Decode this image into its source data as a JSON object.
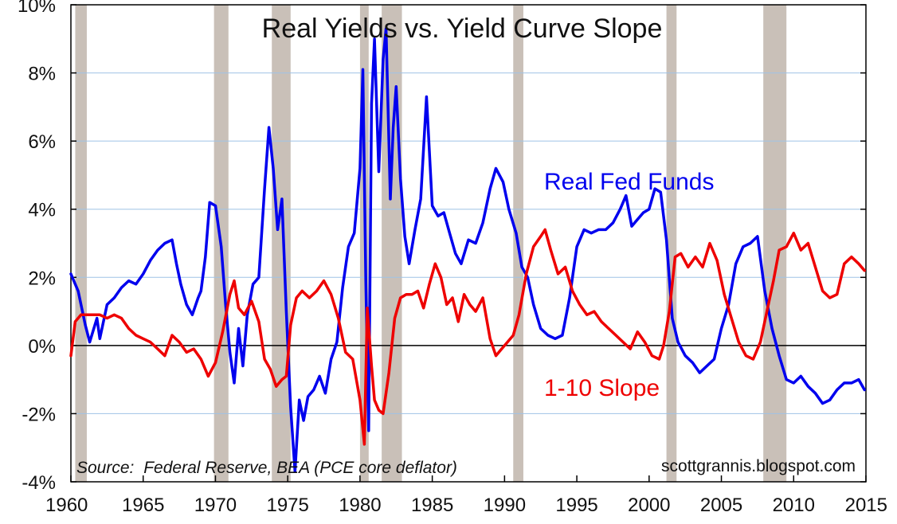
{
  "chart_data": {
    "type": "line",
    "title": "Real Yields vs. Yield Curve Slope",
    "xlabel": "",
    "ylabel": "",
    "xlim": [
      1960,
      2015
    ],
    "ylim": [
      -4,
      10
    ],
    "x_ticks": [
      "1960",
      "1965",
      "1970",
      "1975",
      "1980",
      "1985",
      "1990",
      "1995",
      "2000",
      "2005",
      "2010",
      "2015"
    ],
    "y_ticks": [
      "-4%",
      "-2%",
      "0%",
      "2%",
      "4%",
      "6%",
      "8%",
      "10%"
    ],
    "grid": true,
    "recessions": [
      [
        1960.3,
        1961.1
      ],
      [
        1969.9,
        1970.9
      ],
      [
        1973.9,
        1975.2
      ],
      [
        1980.0,
        1980.6
      ],
      [
        1981.5,
        1982.9
      ],
      [
        1990.6,
        1991.3
      ],
      [
        2001.2,
        2001.9
      ],
      [
        2007.9,
        2009.5
      ]
    ],
    "series": [
      {
        "name": "Real Fed Funds",
        "color": "#0000ee",
        "points": [
          [
            1960.0,
            2.1
          ],
          [
            1960.5,
            1.6
          ],
          [
            1961.0,
            0.6
          ],
          [
            1961.3,
            0.1
          ],
          [
            1961.8,
            0.8
          ],
          [
            1962.0,
            0.2
          ],
          [
            1962.5,
            1.2
          ],
          [
            1963.0,
            1.4
          ],
          [
            1963.5,
            1.7
          ],
          [
            1964.0,
            1.9
          ],
          [
            1964.5,
            1.8
          ],
          [
            1965.0,
            2.1
          ],
          [
            1965.5,
            2.5
          ],
          [
            1966.0,
            2.8
          ],
          [
            1966.5,
            3.0
          ],
          [
            1967.0,
            3.1
          ],
          [
            1967.3,
            2.4
          ],
          [
            1967.6,
            1.8
          ],
          [
            1968.0,
            1.2
          ],
          [
            1968.4,
            0.9
          ],
          [
            1968.8,
            1.4
          ],
          [
            1969.0,
            1.6
          ],
          [
            1969.3,
            2.6
          ],
          [
            1969.6,
            4.2
          ],
          [
            1970.0,
            4.1
          ],
          [
            1970.4,
            2.9
          ],
          [
            1970.7,
            1.2
          ],
          [
            1971.0,
            -0.2
          ],
          [
            1971.3,
            -1.1
          ],
          [
            1971.6,
            0.5
          ],
          [
            1971.9,
            -0.6
          ],
          [
            1972.2,
            0.9
          ],
          [
            1972.6,
            1.8
          ],
          [
            1973.0,
            2.0
          ],
          [
            1973.4,
            4.6
          ],
          [
            1973.7,
            6.4
          ],
          [
            1974.0,
            5.2
          ],
          [
            1974.3,
            3.4
          ],
          [
            1974.6,
            4.3
          ],
          [
            1974.9,
            1.0
          ],
          [
            1975.2,
            -1.8
          ],
          [
            1975.5,
            -3.7
          ],
          [
            1975.8,
            -1.6
          ],
          [
            1976.1,
            -2.2
          ],
          [
            1976.4,
            -1.5
          ],
          [
            1976.8,
            -1.3
          ],
          [
            1977.2,
            -0.9
          ],
          [
            1977.6,
            -1.4
          ],
          [
            1978.0,
            -0.4
          ],
          [
            1978.4,
            0.1
          ],
          [
            1978.8,
            1.7
          ],
          [
            1979.2,
            2.9
          ],
          [
            1979.6,
            3.3
          ],
          [
            1980.0,
            5.2
          ],
          [
            1980.2,
            8.1
          ],
          [
            1980.4,
            1.9
          ],
          [
            1980.6,
            -2.5
          ],
          [
            1980.8,
            7.1
          ],
          [
            1981.0,
            9.0
          ],
          [
            1981.3,
            5.1
          ],
          [
            1981.6,
            8.4
          ],
          [
            1981.8,
            9.3
          ],
          [
            1982.1,
            4.3
          ],
          [
            1982.3,
            6.4
          ],
          [
            1982.5,
            7.6
          ],
          [
            1982.8,
            4.9
          ],
          [
            1983.1,
            3.2
          ],
          [
            1983.4,
            2.4
          ],
          [
            1983.8,
            3.4
          ],
          [
            1984.2,
            4.3
          ],
          [
            1984.6,
            7.3
          ],
          [
            1985.0,
            4.1
          ],
          [
            1985.4,
            3.8
          ],
          [
            1985.8,
            3.9
          ],
          [
            1986.2,
            3.3
          ],
          [
            1986.6,
            2.7
          ],
          [
            1987.0,
            2.4
          ],
          [
            1987.5,
            3.1
          ],
          [
            1988.0,
            3.0
          ],
          [
            1988.5,
            3.6
          ],
          [
            1989.0,
            4.6
          ],
          [
            1989.4,
            5.2
          ],
          [
            1989.9,
            4.8
          ],
          [
            1990.3,
            4.0
          ],
          [
            1990.8,
            3.3
          ],
          [
            1991.2,
            2.3
          ],
          [
            1991.6,
            2.0
          ],
          [
            1992.0,
            1.2
          ],
          [
            1992.5,
            0.5
          ],
          [
            1993.0,
            0.3
          ],
          [
            1993.5,
            0.2
          ],
          [
            1994.0,
            0.3
          ],
          [
            1994.5,
            1.4
          ],
          [
            1995.0,
            2.9
          ],
          [
            1995.5,
            3.4
          ],
          [
            1996.0,
            3.3
          ],
          [
            1996.5,
            3.4
          ],
          [
            1997.0,
            3.4
          ],
          [
            1997.5,
            3.6
          ],
          [
            1998.0,
            4.0
          ],
          [
            1998.4,
            4.4
          ],
          [
            1998.8,
            3.5
          ],
          [
            1999.2,
            3.7
          ],
          [
            1999.6,
            3.9
          ],
          [
            2000.0,
            4.0
          ],
          [
            2000.4,
            4.6
          ],
          [
            2000.8,
            4.5
          ],
          [
            2001.2,
            3.1
          ],
          [
            2001.6,
            0.8
          ],
          [
            2002.0,
            0.1
          ],
          [
            2002.5,
            -0.3
          ],
          [
            2003.0,
            -0.5
          ],
          [
            2003.5,
            -0.8
          ],
          [
            2004.0,
            -0.6
          ],
          [
            2004.5,
            -0.4
          ],
          [
            2005.0,
            0.5
          ],
          [
            2005.5,
            1.2
          ],
          [
            2006.0,
            2.4
          ],
          [
            2006.5,
            2.9
          ],
          [
            2007.0,
            3.0
          ],
          [
            2007.5,
            3.2
          ],
          [
            2008.0,
            1.6
          ],
          [
            2008.5,
            0.5
          ],
          [
            2009.0,
            -0.3
          ],
          [
            2009.5,
            -1.0
          ],
          [
            2010.0,
            -1.1
          ],
          [
            2010.5,
            -0.9
          ],
          [
            2011.0,
            -1.2
          ],
          [
            2011.5,
            -1.4
          ],
          [
            2012.0,
            -1.7
          ],
          [
            2012.5,
            -1.6
          ],
          [
            2013.0,
            -1.3
          ],
          [
            2013.5,
            -1.1
          ],
          [
            2014.0,
            -1.1
          ],
          [
            2014.5,
            -1.0
          ],
          [
            2014.9,
            -1.3
          ]
        ]
      },
      {
        "name": "1-10 Slope",
        "color": "#ee0000",
        "points": [
          [
            1960.0,
            -0.3
          ],
          [
            1960.3,
            0.7
          ],
          [
            1960.7,
            0.9
          ],
          [
            1961.0,
            0.9
          ],
          [
            1961.5,
            0.9
          ],
          [
            1962.0,
            0.9
          ],
          [
            1962.5,
            0.8
          ],
          [
            1963.0,
            0.9
          ],
          [
            1963.5,
            0.8
          ],
          [
            1964.0,
            0.5
          ],
          [
            1964.5,
            0.3
          ],
          [
            1965.0,
            0.2
          ],
          [
            1965.5,
            0.1
          ],
          [
            1966.0,
            -0.1
          ],
          [
            1966.5,
            -0.3
          ],
          [
            1967.0,
            0.3
          ],
          [
            1967.5,
            0.1
          ],
          [
            1968.0,
            -0.2
          ],
          [
            1968.5,
            -0.1
          ],
          [
            1969.0,
            -0.4
          ],
          [
            1969.5,
            -0.9
          ],
          [
            1970.0,
            -0.5
          ],
          [
            1970.5,
            0.4
          ],
          [
            1971.0,
            1.5
          ],
          [
            1971.3,
            1.9
          ],
          [
            1971.6,
            1.1
          ],
          [
            1972.0,
            0.9
          ],
          [
            1972.5,
            1.3
          ],
          [
            1973.0,
            0.7
          ],
          [
            1973.4,
            -0.4
          ],
          [
            1973.8,
            -0.7
          ],
          [
            1974.2,
            -1.2
          ],
          [
            1974.6,
            -1.0
          ],
          [
            1974.9,
            -0.9
          ],
          [
            1975.2,
            0.6
          ],
          [
            1975.6,
            1.4
          ],
          [
            1976.0,
            1.6
          ],
          [
            1976.5,
            1.4
          ],
          [
            1977.0,
            1.6
          ],
          [
            1977.5,
            1.9
          ],
          [
            1978.0,
            1.5
          ],
          [
            1978.5,
            0.8
          ],
          [
            1979.0,
            -0.2
          ],
          [
            1979.5,
            -0.4
          ],
          [
            1980.0,
            -1.6
          ],
          [
            1980.3,
            -2.9
          ],
          [
            1980.5,
            1.1
          ],
          [
            1980.8,
            -0.6
          ],
          [
            1981.0,
            -1.6
          ],
          [
            1981.3,
            -1.9
          ],
          [
            1981.6,
            -2.0
          ],
          [
            1982.0,
            -0.8
          ],
          [
            1982.4,
            0.8
          ],
          [
            1982.8,
            1.4
          ],
          [
            1983.2,
            1.5
          ],
          [
            1983.6,
            1.5
          ],
          [
            1984.0,
            1.6
          ],
          [
            1984.4,
            1.1
          ],
          [
            1984.8,
            1.8
          ],
          [
            1985.2,
            2.4
          ],
          [
            1985.6,
            2.0
          ],
          [
            1986.0,
            1.2
          ],
          [
            1986.4,
            1.4
          ],
          [
            1986.8,
            0.7
          ],
          [
            1987.2,
            1.5
          ],
          [
            1987.6,
            1.2
          ],
          [
            1988.0,
            1.0
          ],
          [
            1988.5,
            1.4
          ],
          [
            1989.0,
            0.2
          ],
          [
            1989.4,
            -0.3
          ],
          [
            1989.8,
            -0.1
          ],
          [
            1990.2,
            0.1
          ],
          [
            1990.6,
            0.3
          ],
          [
            1991.0,
            0.9
          ],
          [
            1991.5,
            2.1
          ],
          [
            1992.0,
            2.9
          ],
          [
            1992.5,
            3.2
          ],
          [
            1992.8,
            3.4
          ],
          [
            1993.2,
            2.8
          ],
          [
            1993.7,
            2.1
          ],
          [
            1994.2,
            2.3
          ],
          [
            1994.7,
            1.6
          ],
          [
            1995.2,
            1.2
          ],
          [
            1995.7,
            0.9
          ],
          [
            1996.2,
            1.0
          ],
          [
            1996.7,
            0.7
          ],
          [
            1997.2,
            0.5
          ],
          [
            1997.7,
            0.3
          ],
          [
            1998.2,
            0.1
          ],
          [
            1998.7,
            -0.1
          ],
          [
            1999.2,
            0.4
          ],
          [
            1999.7,
            0.1
          ],
          [
            2000.2,
            -0.3
          ],
          [
            2000.7,
            -0.4
          ],
          [
            2001.0,
            0.0
          ],
          [
            2001.4,
            1.0
          ],
          [
            2001.8,
            2.6
          ],
          [
            2002.2,
            2.7
          ],
          [
            2002.7,
            2.3
          ],
          [
            2003.2,
            2.6
          ],
          [
            2003.7,
            2.3
          ],
          [
            2004.2,
            3.0
          ],
          [
            2004.7,
            2.5
          ],
          [
            2005.2,
            1.5
          ],
          [
            2005.7,
            0.8
          ],
          [
            2006.2,
            0.1
          ],
          [
            2006.7,
            -0.3
          ],
          [
            2007.2,
            -0.4
          ],
          [
            2007.7,
            0.1
          ],
          [
            2008.2,
            1.1
          ],
          [
            2008.6,
            1.9
          ],
          [
            2009.0,
            2.8
          ],
          [
            2009.5,
            2.9
          ],
          [
            2010.0,
            3.3
          ],
          [
            2010.5,
            2.8
          ],
          [
            2011.0,
            3.0
          ],
          [
            2011.5,
            2.3
          ],
          [
            2012.0,
            1.6
          ],
          [
            2012.5,
            1.4
          ],
          [
            2013.0,
            1.5
          ],
          [
            2013.5,
            2.4
          ],
          [
            2014.0,
            2.6
          ],
          [
            2014.5,
            2.4
          ],
          [
            2014.9,
            2.2
          ]
        ]
      }
    ],
    "annotations": {
      "source_prefix": "Source:",
      "source_text": "Federal Reserve, BEA (PCE core deflator)",
      "credit": "scottgrannis.blogspot.com"
    }
  },
  "colors": {
    "background": "#ffffff",
    "grid": "#9fc3e6",
    "recession": "#c9c0b8",
    "zero_line": "#000000",
    "axis": "#000000"
  }
}
